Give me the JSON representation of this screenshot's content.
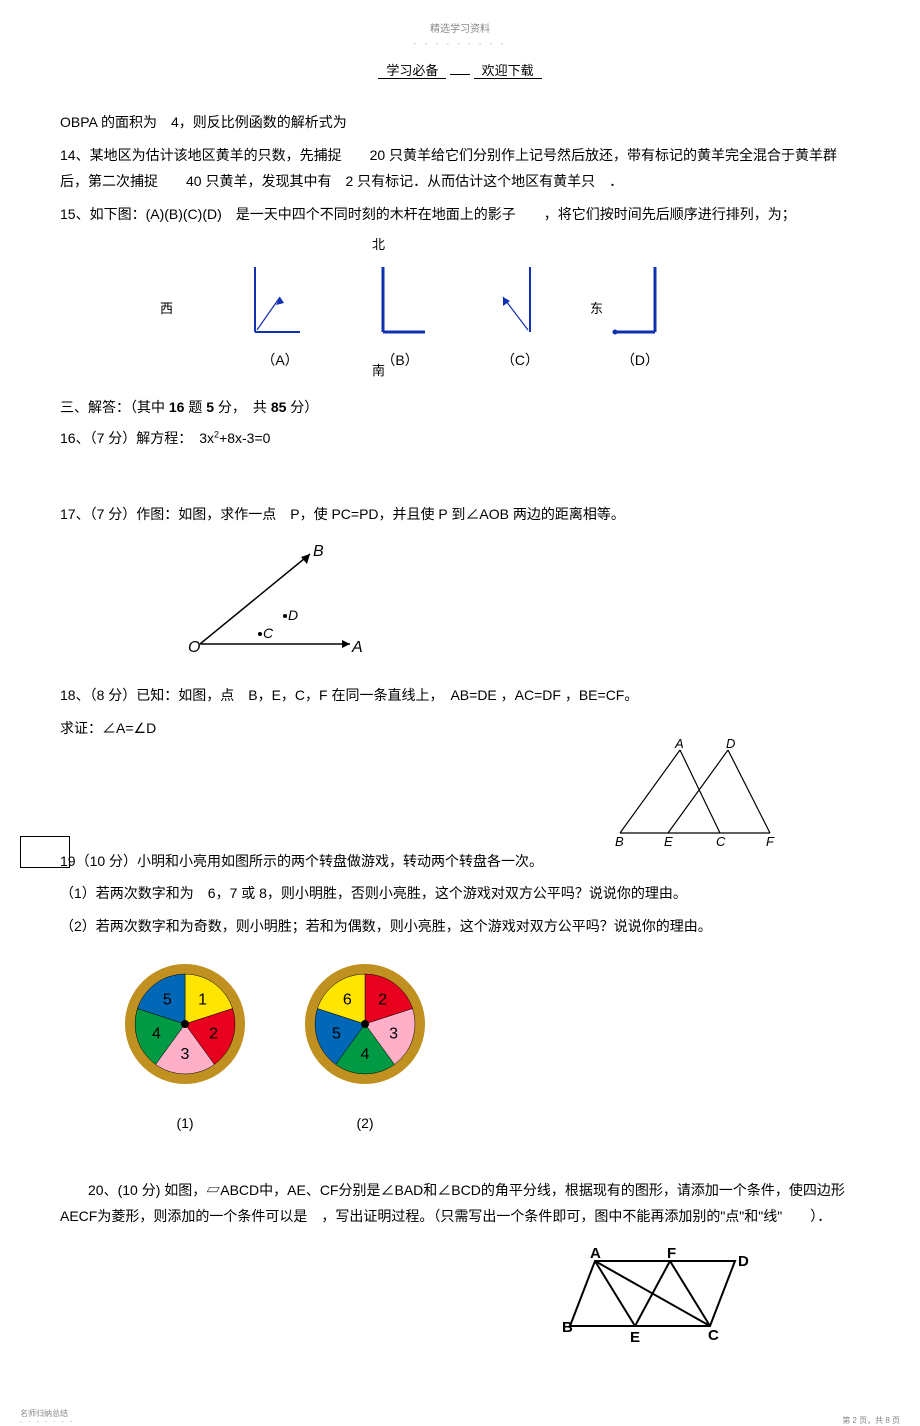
{
  "header": {
    "small": "精选学习资料",
    "line1": "学习必备",
    "line2": "欢迎下载"
  },
  "q13": "OBPA 的面积为　4，则反比例函数的解析式为",
  "q14": "14、某地区为估计该地区黄羊的只数，先捕捉　　20 只黄羊给它们分别作上记号然后放还，带有标记的黄羊完全混合于黄羊群后，第二次捕捉　　40 只黄羊，发现其中有　2 只有标记．从而估计这个地区有黄羊只　．",
  "q15": "15、如下图：(A)(B)(C)(D)　是一天中四个不同时刻的木杆在地面上的影子　　，将它们按时间先后顺序进行排列，为；",
  "compass": {
    "north": "北",
    "south": "南",
    "west": "西",
    "east": "东"
  },
  "shadow_labels": {
    "a": "（A）",
    "b": "（B）",
    "c": "（C）",
    "d": "（D）"
  },
  "section3": "三、解答：（其中 ",
  "section3_bold1": "16",
  "section3_mid": " 题 ",
  "section3_bold2": "5",
  "section3_mid2": " 分，　共 ",
  "section3_bold3": "85",
  "section3_end": " 分）",
  "q16": "16、（7 分）解方程：　3x",
  "q16_exp": "2",
  "q16_rest": "+8x-3=0",
  "q17": "17、（7 分）作图：如图，求作一点　P，使 PC=PD，并且使 P 到∠AOB 两边的距离相等。",
  "q17_labels": {
    "O": "O",
    "A": "A",
    "B": "B",
    "C": "C",
    "D": "D"
  },
  "q18_l1": "18、（8 分）已知：如图，点　B，E，C，F 在同一条直线上，　AB=DE ，AC=DF ，BE=CF。",
  "q18_l2": "求证：∠A=∠D",
  "q18_labels": {
    "A": "A",
    "B": "B",
    "C": "C",
    "D": "D",
    "E": "E",
    "F": "F"
  },
  "q19_l1": "19（10 分）小明和小亮用如图所示的两个转盘做游戏，转动两个转盘各一次。",
  "q19_l2": "（1）若两次数字和为　6，7 或 8，则小明胜，否则小亮胜，这个游戏对双方公平吗？说说你的理由。",
  "q19_l3": "（2）若两次数字和为奇数，则小明胜；若和为偶数，则小亮胜，这个游戏对双方公平吗？说说你的理由。",
  "spinner1": {
    "label": "(1)",
    "sectors": [
      {
        "n": "1",
        "color": "#ffe500"
      },
      {
        "n": "2",
        "color": "#e8001f"
      },
      {
        "n": "3",
        "color": "#ffb0c8"
      },
      {
        "n": "4",
        "color": "#009944"
      },
      {
        "n": "5",
        "color": "#0068b7"
      }
    ],
    "rim": "#c09020"
  },
  "spinner2": {
    "label": "(2)",
    "sectors": [
      {
        "n": "2",
        "color": "#e8001f"
      },
      {
        "n": "3",
        "color": "#ffb0c8"
      },
      {
        "n": "4",
        "color": "#009944"
      },
      {
        "n": "5",
        "color": "#0068b7"
      },
      {
        "n": "6",
        "color": "#ffe500"
      }
    ],
    "rim": "#c09020"
  },
  "q20_l1": "　　20、(10 分) 如图，▱ABCD中，AE、CF分别是∠BAD和∠BCD的角平分线，根据现有的图形，请添加一个条件，使四边形 AECF为菱形，则添加的一个条件可以是　，写出证明过程。（只需写出一个条件即可，图中不能再添加别的\"点\"和\"线\"　　）．",
  "q20_labels": {
    "A": "A",
    "B": "B",
    "C": "C",
    "D": "D",
    "E": "E",
    "F": "F"
  },
  "footer": {
    "left": "名师归纳总结",
    "right": "第 2 页，共 8 页"
  },
  "colors": {
    "shadow_line": "#1030b0",
    "text": "#000000"
  }
}
